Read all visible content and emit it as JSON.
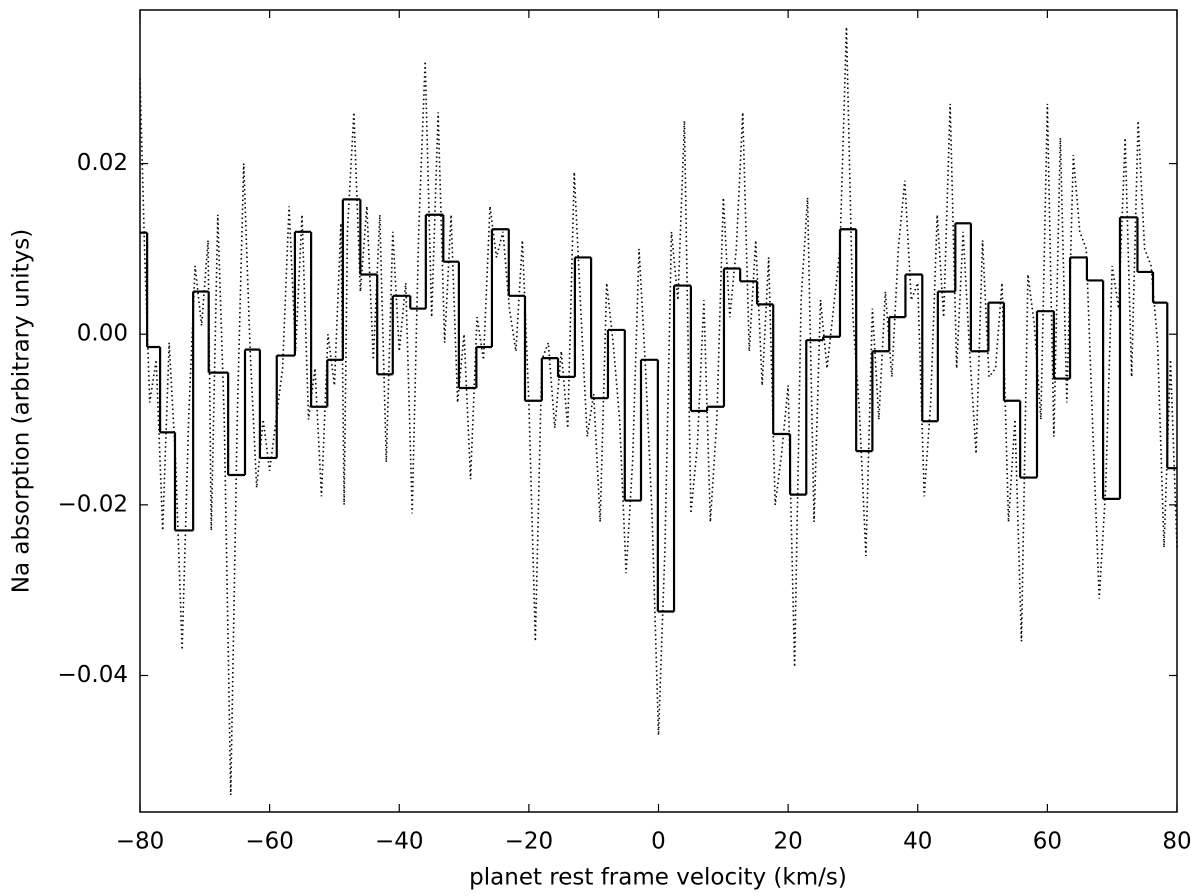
{
  "chart_data": {
    "type": "line",
    "xlabel": "planet rest frame velocity (km/s)",
    "ylabel": "Na absorption (arbitrary unitys)",
    "xlim": [
      -80,
      80
    ],
    "ylim": [
      -0.056,
      0.038
    ],
    "xticks": [
      {
        "value": -80,
        "label": "−80"
      },
      {
        "value": -60,
        "label": "−60"
      },
      {
        "value": -40,
        "label": "−40"
      },
      {
        "value": -20,
        "label": "−20"
      },
      0,
      20,
      40,
      60,
      80
    ],
    "yticks": [
      {
        "value": -0.04,
        "label": "−0.04"
      },
      {
        "value": -0.02,
        "label": "−0.02"
      },
      {
        "value": 0,
        "label": "0.00"
      },
      0.02
    ],
    "series": [
      {
        "color": "#000000",
        "style": "dotted",
        "x": [
          -80,
          -79.3,
          -78.5,
          -77.5,
          -76.5,
          -75.5,
          -74.5,
          -73.5,
          -72.5,
          -71.5,
          -70.5,
          -69.5,
          -69,
          -68,
          -67,
          -66,
          -65,
          -64,
          -63,
          -62,
          -61,
          -60,
          -59,
          -58,
          -57,
          -56,
          -55,
          -54,
          -53,
          -52,
          -51,
          -50,
          -49,
          -48.5,
          -48,
          -47,
          -46,
          -45,
          -44,
          -43,
          -42,
          -41,
          -40,
          -39,
          -38,
          -37,
          -36,
          -35,
          -34,
          -33,
          -32,
          -31,
          -30,
          -29,
          -28,
          -27,
          -26,
          -25,
          -24,
          -23,
          -22,
          -21,
          -20,
          -19,
          -18,
          -17,
          -16,
          -15,
          -14,
          -13,
          -12,
          -11,
          -10,
          -9,
          -8,
          -7,
          -6,
          -5,
          -4,
          -3,
          -2,
          -1,
          0,
          1,
          2,
          3,
          4,
          5,
          6,
          7,
          8,
          9,
          10,
          11,
          12,
          13,
          14,
          15,
          16,
          17,
          18,
          19,
          20,
          21,
          22,
          23,
          24,
          25,
          26,
          27,
          28,
          29,
          30,
          31,
          32,
          33,
          34,
          35,
          36,
          37,
          38,
          39,
          40,
          41,
          42,
          43,
          44,
          45,
          46,
          47,
          48,
          49,
          50,
          51,
          52,
          53,
          54,
          55,
          56,
          57,
          58,
          59,
          60,
          61,
          62,
          63,
          64,
          65,
          66,
          67,
          68,
          69,
          70,
          71,
          72,
          73,
          74,
          75,
          76,
          77,
          78,
          79,
          80
        ],
        "values": [
          0.03,
          0.01,
          -0.008,
          -0.003,
          -0.023,
          -0.001,
          -0.015,
          -0.037,
          -0.01,
          0.008,
          0.001,
          0.011,
          -0.023,
          0.014,
          -0.01,
          -0.054,
          -0.01,
          0.02,
          -0.002,
          -0.018,
          -0.01,
          -0.016,
          -0.01,
          -0.004,
          0.015,
          -0.002,
          0.014,
          -0.01,
          -0.004,
          -0.019,
          0.0,
          -0.006,
          0.013,
          -0.02,
          0.012,
          0.026,
          0.005,
          0.015,
          -0.003,
          0.014,
          -0.015,
          0.012,
          -0.002,
          0.006,
          -0.021,
          0.012,
          0.032,
          0.002,
          0.026,
          -0.001,
          0.014,
          -0.008,
          0.0,
          -0.017,
          0.002,
          -0.003,
          0.015,
          0.009,
          0.012,
          0.003,
          -0.002,
          0.011,
          -0.008,
          -0.036,
          -0.003,
          -0.001,
          -0.011,
          -0.002,
          -0.011,
          0.019,
          0.003,
          -0.012,
          -0.007,
          -0.022,
          0.006,
          -0.001,
          -0.01,
          -0.028,
          -0.015,
          0.01,
          -0.004,
          -0.021,
          -0.047,
          -0.025,
          0.012,
          0.004,
          0.025,
          -0.021,
          -0.013,
          0.004,
          -0.022,
          -0.01,
          0.016,
          0.002,
          0.01,
          0.026,
          -0.002,
          0.011,
          -0.006,
          0.009,
          -0.02,
          -0.014,
          -0.006,
          -0.039,
          0.004,
          0.016,
          -0.022,
          0.004,
          -0.004,
          0.003,
          0.01,
          0.036,
          0.002,
          -0.009,
          -0.026,
          0.003,
          -0.01,
          0.005,
          -0.005,
          0.01,
          0.018,
          0.004,
          0.006,
          -0.019,
          -0.008,
          0.014,
          0.002,
          0.027,
          -0.004,
          0.012,
          -0.002,
          -0.014,
          0.011,
          -0.005,
          -0.004,
          0.006,
          -0.022,
          -0.01,
          -0.036,
          0.007,
          0.001,
          -0.01,
          0.027,
          -0.012,
          0.023,
          -0.008,
          0.021,
          0.012,
          0.01,
          -0.011,
          -0.031,
          -0.018,
          0.008,
          0.003,
          0.023,
          -0.005,
          0.025,
          0.01,
          0.008,
          -0.001,
          -0.025,
          -0.003,
          -0.025
        ]
      },
      {
        "color": "#000000",
        "style": "steps",
        "x": [
          -80.0,
          -78.9,
          -76.9,
          -74.6,
          -71.8,
          -69.4,
          -66.4,
          -63.8,
          -61.5,
          -58.9,
          -56.1,
          -53.6,
          -51.1,
          -48.7,
          -46.0,
          -43.4,
          -41.0,
          -38.3,
          -35.9,
          -33.2,
          -30.8,
          -28.1,
          -25.7,
          -23.1,
          -20.6,
          -18.0,
          -15.5,
          -12.9,
          -10.4,
          -7.8,
          -5.2,
          -2.7,
          -0.1,
          2.4,
          5.0,
          7.5,
          10.1,
          12.6,
          15.2,
          17.7,
          20.3,
          22.8,
          25.4,
          28.0,
          30.5,
          33.0,
          35.6,
          38.1,
          40.7,
          43.1,
          45.8,
          48.2,
          50.9,
          53.3,
          55.8,
          58.4,
          61.0,
          63.5,
          66.1,
          68.6,
          71.2,
          73.9,
          76.3,
          78.5
        ],
        "values": [
          0.0119,
          -0.0015,
          -0.0115,
          -0.023,
          0.005,
          -0.0045,
          -0.0165,
          -0.0018,
          -0.0145,
          -0.0025,
          0.012,
          -0.0085,
          -0.003,
          0.0158,
          0.007,
          -0.0047,
          0.0045,
          0.003,
          0.014,
          0.0085,
          -0.0063,
          -0.0015,
          0.0123,
          0.0045,
          -0.0078,
          -0.0028,
          -0.005,
          0.009,
          -0.0075,
          0.0005,
          -0.0195,
          -0.003,
          -0.0325,
          0.0057,
          -0.009,
          -0.0085,
          0.0077,
          0.0062,
          0.0035,
          -0.0117,
          -0.0188,
          -0.0007,
          -0.0003,
          0.0123,
          -0.0137,
          -0.002,
          0.002,
          0.007,
          -0.0102,
          0.005,
          0.013,
          -0.002,
          0.0037,
          -0.0078,
          -0.0168,
          0.0027,
          -0.0052,
          0.009,
          0.0063,
          -0.0193,
          0.0137,
          0.0073,
          0.0037,
          -0.0157
        ]
      }
    ]
  }
}
